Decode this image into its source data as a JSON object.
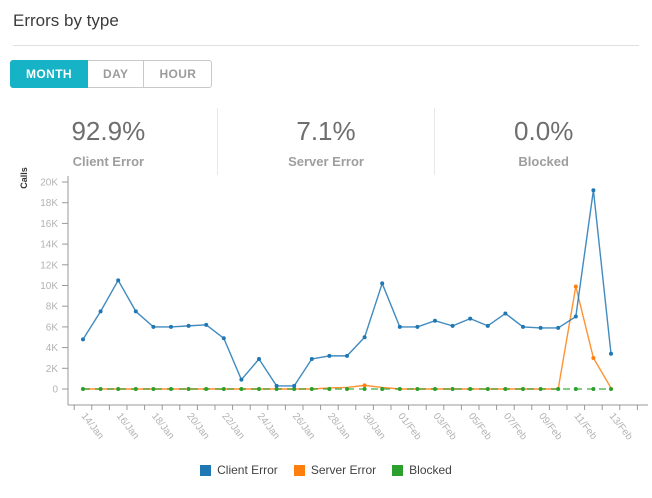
{
  "header": {
    "title": "Errors by type"
  },
  "toolbar": {
    "active_color": "#16b2c5",
    "buttons": [
      {
        "label": "MONTH",
        "active": true
      },
      {
        "label": "DAY",
        "active": false
      },
      {
        "label": "HOUR",
        "active": false
      }
    ]
  },
  "stats": [
    {
      "value": "92.9%",
      "label": "Client Error"
    },
    {
      "value": "7.1%",
      "label": "Server Error"
    },
    {
      "value": "0.0%",
      "label": "Blocked"
    }
  ],
  "chart_data": {
    "type": "line",
    "title": "",
    "xlabel": "",
    "ylabel": "Calls",
    "ylim": [
      0,
      20000
    ],
    "y_tick_step": 2000,
    "y_tick_labels": [
      "0",
      "2K",
      "4K",
      "6K",
      "8K",
      "10K",
      "12K",
      "14K",
      "16K",
      "18K",
      "20K"
    ],
    "x_label_every": 2,
    "grid": false,
    "legend_position": "bottom",
    "categories": [
      "14/Jan",
      "15/Jan",
      "16/Jan",
      "17/Jan",
      "18/Jan",
      "19/Jan",
      "20/Jan",
      "21/Jan",
      "22/Jan",
      "23/Jan",
      "24/Jan",
      "25/Jan",
      "26/Jan",
      "27/Jan",
      "28/Jan",
      "29/Jan",
      "30/Jan",
      "31/Jan",
      "01/Feb",
      "02/Feb",
      "03/Feb",
      "04/Feb",
      "05/Feb",
      "06/Feb",
      "07/Feb",
      "08/Feb",
      "09/Feb",
      "10/Feb",
      "11/Feb",
      "12/Feb",
      "13/Feb"
    ],
    "series": [
      {
        "name": "Client Error",
        "color": "#1f77b4",
        "line_style": "solid",
        "values": [
          4800,
          7500,
          10500,
          7500,
          6000,
          6000,
          6100,
          6200,
          4900,
          900,
          2900,
          300,
          300,
          2900,
          3200,
          3200,
          5000,
          10200,
          6000,
          6000,
          6600,
          6100,
          6800,
          6100,
          7300,
          6000,
          5900,
          5900,
          7000,
          19200,
          3400
        ]
      },
      {
        "name": "Server Error",
        "color": "#ff7f0e",
        "line_style": "solid",
        "values": [
          0,
          0,
          0,
          0,
          0,
          0,
          0,
          0,
          0,
          0,
          0,
          0,
          0,
          0,
          100,
          150,
          350,
          150,
          0,
          0,
          0,
          0,
          0,
          0,
          0,
          0,
          0,
          0,
          9900,
          3000,
          100
        ]
      },
      {
        "name": "Blocked",
        "color": "#2ca02c",
        "line_style": "dashed",
        "values": [
          0,
          0,
          0,
          0,
          0,
          0,
          0,
          0,
          0,
          0,
          0,
          0,
          0,
          0,
          0,
          0,
          0,
          0,
          0,
          0,
          0,
          0,
          0,
          0,
          0,
          0,
          0,
          0,
          0,
          0,
          0
        ]
      }
    ]
  },
  "legend": {
    "items": [
      {
        "label": "Client Error",
        "color": "#1f77b4"
      },
      {
        "label": "Server Error",
        "color": "#ff7f0e"
      },
      {
        "label": "Blocked",
        "color": "#2ca02c"
      }
    ]
  }
}
